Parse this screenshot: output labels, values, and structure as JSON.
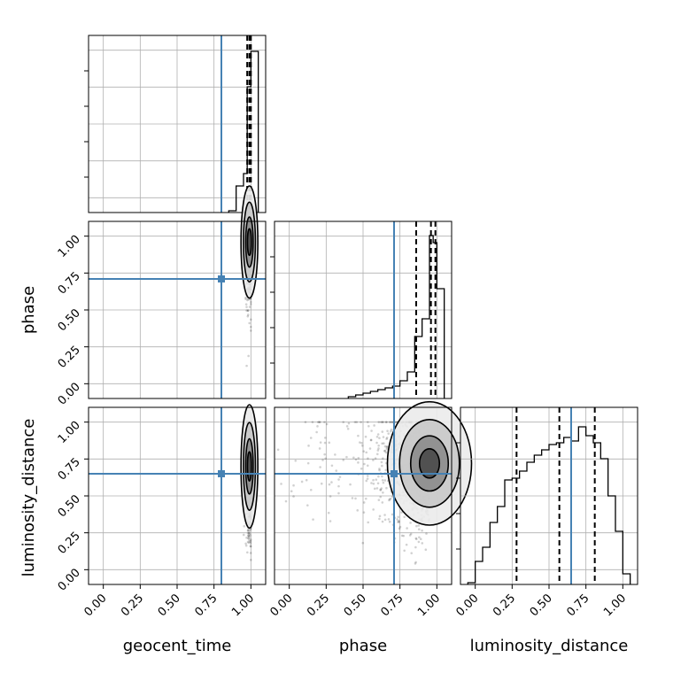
{
  "chart_data": {
    "type": "corner",
    "parameters": [
      "geocent_time",
      "phase",
      "luminosity_distance"
    ],
    "axis_label_x": [
      "geocent_time",
      "phase",
      "luminosity_distance"
    ],
    "axis_label_y": [
      "phase",
      "luminosity_distance"
    ],
    "ticks": [
      "0.00",
      "0.25",
      "0.50",
      "0.75",
      "1.00"
    ],
    "tick_values": [
      0.0,
      0.25,
      0.5,
      0.75,
      1.0
    ],
    "xlim": [
      -0.1,
      1.1
    ],
    "ylim": [
      -0.1,
      1.1
    ],
    "grid": true,
    "truths": {
      "geocent_time": 0.8,
      "phase": 0.71,
      "luminosity_distance": 0.65
    },
    "truth_color": "#4682b4",
    "histograms": {
      "geocent_time": {
        "edges": [
          0.85,
          0.9,
          0.95,
          0.975,
          1.0,
          1.05
        ],
        "counts": [
          0.01,
          0.15,
          0.22,
          0.71,
          0.91
        ],
        "quantiles": [
          0.975,
          0.99,
          1.0
        ]
      },
      "phase": {
        "edges": [
          0.4,
          0.45,
          0.5,
          0.55,
          0.6,
          0.65,
          0.7,
          0.75,
          0.8,
          0.85,
          0.9,
          0.95,
          0.975,
          1.0,
          1.05
        ],
        "counts": [
          0.01,
          0.02,
          0.03,
          0.04,
          0.05,
          0.06,
          0.07,
          0.1,
          0.15,
          0.35,
          0.45,
          0.92,
          0.88,
          0.62
        ],
        "quantiles": [
          0.86,
          0.96,
          0.99
        ]
      },
      "luminosity_distance": {
        "edges": [
          -0.05,
          0.0,
          0.05,
          0.1,
          0.15,
          0.2,
          0.25,
          0.3,
          0.35,
          0.4,
          0.45,
          0.5,
          0.55,
          0.6,
          0.65,
          0.7,
          0.75,
          0.8,
          0.85,
          0.9,
          0.95,
          1.0,
          1.05
        ],
        "counts": [
          0.01,
          0.13,
          0.21,
          0.35,
          0.44,
          0.59,
          0.6,
          0.64,
          0.69,
          0.73,
          0.76,
          0.79,
          0.8,
          0.83,
          0.81,
          0.89,
          0.84,
          0.8,
          0.71,
          0.5,
          0.3,
          0.06
        ],
        "quantiles": [
          0.28,
          0.57,
          0.81
        ]
      }
    },
    "scatter_2d": [
      {
        "x": "geocent_time",
        "y": "phase",
        "x_center": 0.99,
        "y_center": 0.96,
        "x_spread": 0.012,
        "y_spread": 0.2
      },
      {
        "x": "geocent_time",
        "y": "luminosity_distance",
        "x_center": 0.99,
        "y_center": 0.7,
        "x_spread": 0.012,
        "y_spread": 0.22
      },
      {
        "x": "phase",
        "y": "luminosity_distance",
        "x_center": 0.95,
        "y_center": 0.72,
        "x_spread": 0.15,
        "y_spread": 0.22
      }
    ]
  }
}
